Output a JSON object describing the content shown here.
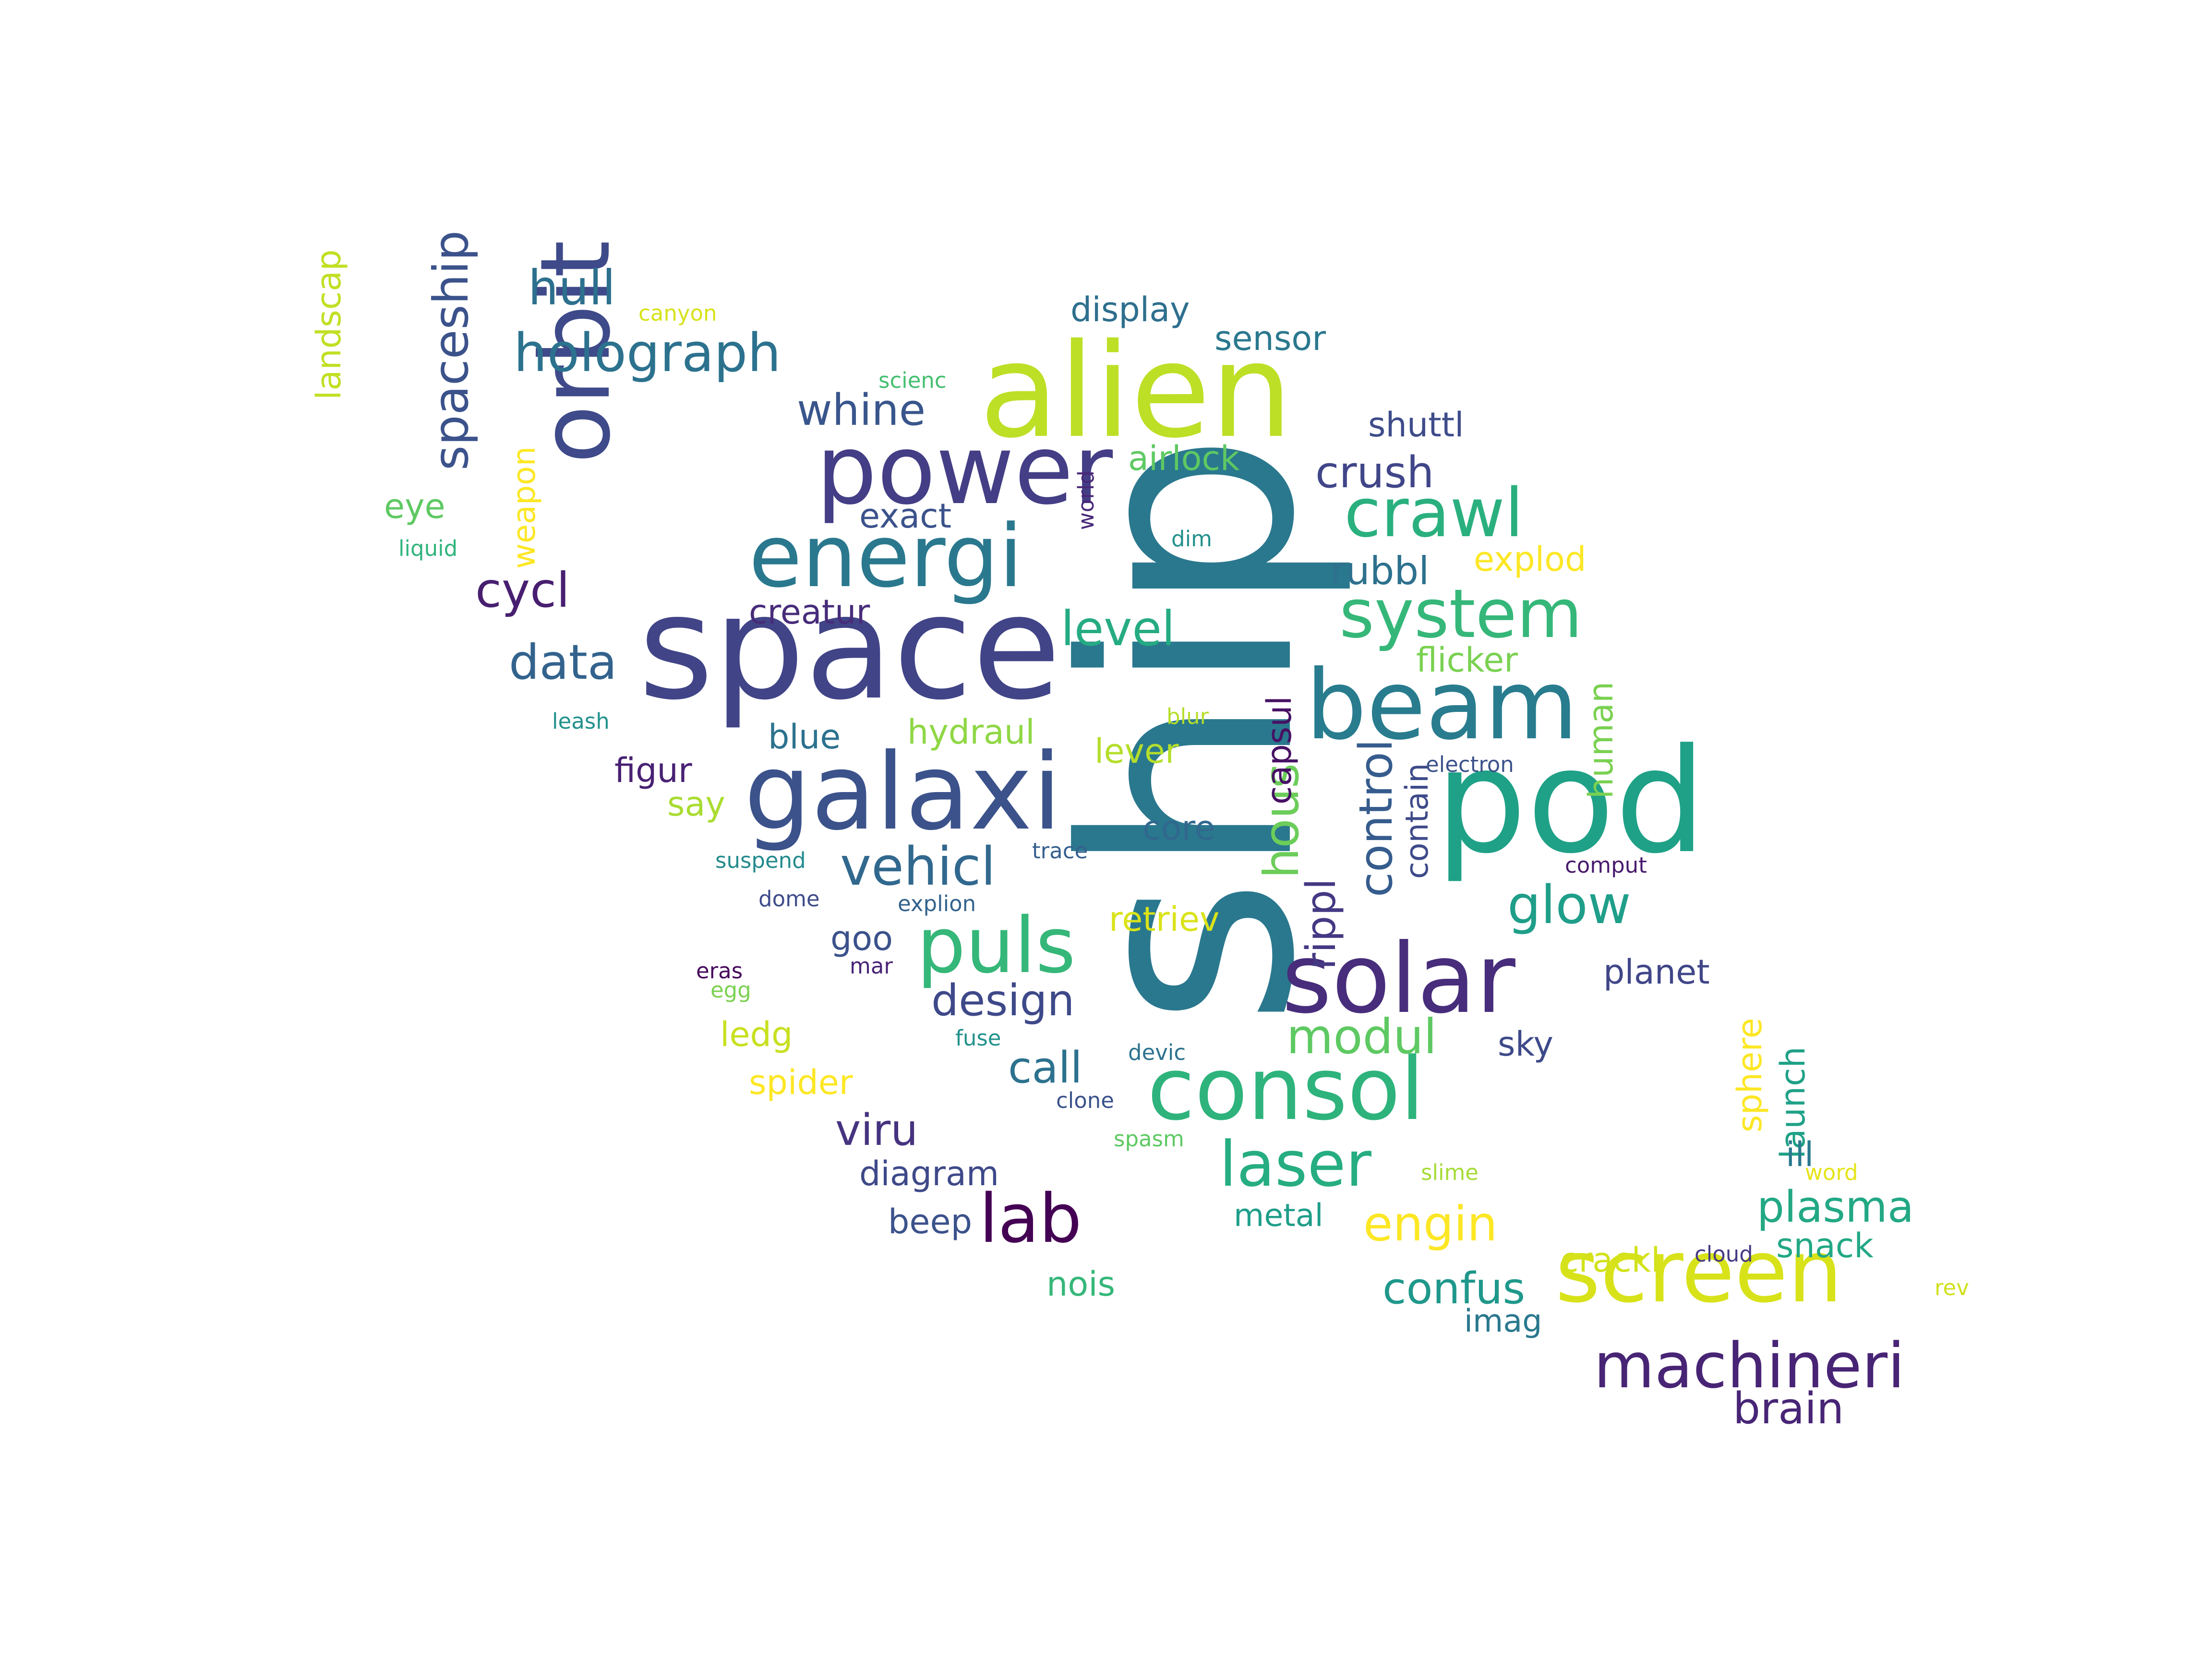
{
  "words": [
    {
      "text": "ship",
      "color": "#2a788e"
    },
    {
      "text": "alien",
      "color": "#bddf26"
    },
    {
      "text": "space",
      "color": "#414487"
    },
    {
      "text": "galaxi",
      "color": "#3b528b"
    },
    {
      "text": "pod",
      "color": "#1fa187"
    },
    {
      "text": "power",
      "color": "#433e85"
    },
    {
      "text": "orbit",
      "color": "#3e4a89"
    },
    {
      "text": "energi",
      "color": "#2a788e"
    },
    {
      "text": "beam",
      "color": "#287c8e"
    },
    {
      "text": "solar",
      "color": "#472d7b"
    },
    {
      "text": "consol",
      "color": "#2eb37c"
    },
    {
      "text": "screen",
      "color": "#d8e219"
    },
    {
      "text": "system",
      "color": "#35b779"
    },
    {
      "text": "crawl",
      "color": "#2ab07f"
    },
    {
      "text": "machineri",
      "color": "#482475"
    },
    {
      "text": "puls",
      "color": "#35b779"
    },
    {
      "text": "laser",
      "color": "#26ad81"
    },
    {
      "text": "lab",
      "color": "#440154"
    },
    {
      "text": "holograph",
      "color": "#2c728e"
    },
    {
      "text": "spaceship",
      "color": "#3b528b"
    },
    {
      "text": "hull",
      "color": "#2d708e"
    },
    {
      "text": "vehicl",
      "color": "#31688e"
    },
    {
      "text": "glow",
      "color": "#1f9e89"
    },
    {
      "text": "level",
      "color": "#25ab82"
    },
    {
      "text": "engin",
      "color": "#fde725"
    },
    {
      "text": "design",
      "color": "#3e4989"
    },
    {
      "text": "data",
      "color": "#33638d"
    },
    {
      "text": "cycl",
      "color": "#481f70"
    },
    {
      "text": "modul",
      "color": "#5ec962"
    },
    {
      "text": "crush",
      "color": "#404688"
    },
    {
      "text": "whine",
      "color": "#39568c"
    },
    {
      "text": "rubbl",
      "color": "#2d718e"
    },
    {
      "text": "confus",
      "color": "#1f988b"
    },
    {
      "text": "plasma",
      "color": "#22a884"
    },
    {
      "text": "brain",
      "color": "#482576"
    },
    {
      "text": "call",
      "color": "#2c728e"
    },
    {
      "text": "viru",
      "color": "#46337f"
    },
    {
      "text": "hous",
      "color": "#6ccd5a"
    },
    {
      "text": "control",
      "color": "#365c8d"
    },
    {
      "text": "rippl",
      "color": "#443983"
    },
    {
      "text": "landscap",
      "color": "#c2df23"
    },
    {
      "text": "display",
      "color": "#2e6f8e"
    },
    {
      "text": "sensor",
      "color": "#2a788e"
    },
    {
      "text": "shuttl",
      "color": "#3e4c8a"
    },
    {
      "text": "airlock",
      "color": "#5ec962"
    },
    {
      "text": "exact",
      "color": "#3b528b"
    },
    {
      "text": "creatur",
      "color": "#472c7a"
    },
    {
      "text": "explod",
      "color": "#fde725"
    },
    {
      "text": "flicker",
      "color": "#7ad151"
    },
    {
      "text": "capsul",
      "color": "#471164"
    },
    {
      "text": "human",
      "color": "#7ad151"
    },
    {
      "text": "eye",
      "color": "#5ec962"
    },
    {
      "text": "weapon",
      "color": "#fde725"
    },
    {
      "text": "blue",
      "color": "#2c728e"
    },
    {
      "text": "hydraul",
      "color": "#8fd744"
    },
    {
      "text": "lever",
      "color": "#b5de2b"
    },
    {
      "text": "figur",
      "color": "#482173"
    },
    {
      "text": "say",
      "color": "#aadc32"
    },
    {
      "text": "core",
      "color": "#31688e"
    },
    {
      "text": "contain",
      "color": "#3e4a89"
    },
    {
      "text": "retriev",
      "color": "#dae319"
    },
    {
      "text": "goo",
      "color": "#3b528b"
    },
    {
      "text": "planet",
      "color": "#404688"
    },
    {
      "text": "ledg",
      "color": "#c8e020"
    },
    {
      "text": "spider",
      "color": "#fde725"
    },
    {
      "text": "sky",
      "color": "#3e4a89"
    },
    {
      "text": "sphere",
      "color": "#fde725"
    },
    {
      "text": "launch",
      "color": "#1fa187"
    },
    {
      "text": "ill",
      "color": "#2a788e"
    },
    {
      "text": "diagram",
      "color": "#3e4989"
    },
    {
      "text": "beep",
      "color": "#3b528b"
    },
    {
      "text": "metal",
      "color": "#1f9e89"
    },
    {
      "text": "nois",
      "color": "#35b779"
    },
    {
      "text": "crackl",
      "color": "#d2e21b"
    },
    {
      "text": "snack",
      "color": "#22a884"
    },
    {
      "text": "imag",
      "color": "#2a788e"
    },
    {
      "text": "canyon",
      "color": "#d8e219"
    },
    {
      "text": "scienc",
      "color": "#44bf70"
    },
    {
      "text": "liquid",
      "color": "#2fb47c"
    },
    {
      "text": "world",
      "color": "#482878"
    },
    {
      "text": "dim",
      "color": "#21918c"
    },
    {
      "text": "leash",
      "color": "#21918c"
    },
    {
      "text": "blur",
      "color": "#b5de2b"
    },
    {
      "text": "electron",
      "color": "#3b528b"
    },
    {
      "text": "suspend",
      "color": "#238a8d"
    },
    {
      "text": "trace",
      "color": "#355f8d"
    },
    {
      "text": "comput",
      "color": "#481a6c"
    },
    {
      "text": "dome",
      "color": "#3e4c8a"
    },
    {
      "text": "explion",
      "color": "#33638d"
    },
    {
      "text": "eras",
      "color": "#46085c"
    },
    {
      "text": "egg",
      "color": "#7ad151"
    },
    {
      "text": "mar",
      "color": "#482475"
    },
    {
      "text": "fuse",
      "color": "#21918c"
    },
    {
      "text": "devic",
      "color": "#2c728e"
    },
    {
      "text": "clone",
      "color": "#3b528b"
    },
    {
      "text": "spasm",
      "color": "#5ec962"
    },
    {
      "text": "slime",
      "color": "#a5db36"
    },
    {
      "text": "word",
      "color": "#e5e419"
    },
    {
      "text": "cloud",
      "color": "#443a83"
    },
    {
      "text": "rev",
      "color": "#d0e11c"
    }
  ]
}
